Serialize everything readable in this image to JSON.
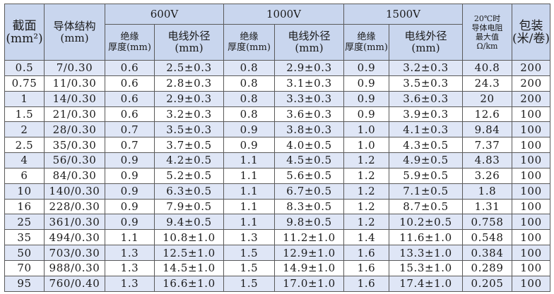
{
  "header": {
    "col_section": "截面\n(mm²)",
    "col_conductor": "导体结构\n(mm)",
    "groups": [
      "600V",
      "1000V",
      "1500V"
    ],
    "sub_thickness": "绝缘\n厚度(mm)",
    "sub_diameter": "电线外径\n(mm)",
    "col_resistance": "20℃时\n导体电阻\n最大值\nΩ/km",
    "col_package": "包装\n(米/卷)"
  },
  "rows": [
    {
      "section": "0.5",
      "conductor": "7/0.30",
      "t600": "0.6",
      "d600": "2.5±0.3",
      "t1000": "0.8",
      "d1000": "2.9±0.3",
      "t1500": "0.9",
      "d1500": "3.2±0.3",
      "resistance": "40.8",
      "package": "200"
    },
    {
      "section": "0.75",
      "conductor": "11/0.30",
      "t600": "0.6",
      "d600": "2.8±0.3",
      "t1000": "0.8",
      "d1000": "3.1±0.3",
      "t1500": "0.9",
      "d1500": "3.5±0.3",
      "resistance": "24.3",
      "package": "200"
    },
    {
      "section": "1",
      "conductor": "14/0.30",
      "t600": "0.6",
      "d600": "2.9±0.3",
      "t1000": "0.8",
      "d1000": "3.3±0.3",
      "t1500": "0.9",
      "d1500": "3.6±0.3",
      "resistance": "20",
      "package": "200"
    },
    {
      "section": "1.5",
      "conductor": "21/0.30",
      "t600": "0.6",
      "d600": "3.2±0.3",
      "t1000": "0.8",
      "d1000": "3.6±0.3",
      "t1500": "0.9",
      "d1500": "3.9±0.3",
      "resistance": "12.6",
      "package": "100"
    },
    {
      "section": "2",
      "conductor": "28/0.30",
      "t600": "0.7",
      "d600": "3.5±0.3",
      "t1000": "0.9",
      "d1000": "3.8±0.3",
      "t1500": "1.0",
      "d1500": "4.1±0.3",
      "resistance": "9.84",
      "package": "100"
    },
    {
      "section": "2.5",
      "conductor": "35/0.30",
      "t600": "0.7",
      "d600": "3.7±0.5",
      "t1000": "0.9",
      "d1000": "4.0±0.5",
      "t1500": "1.0",
      "d1500": "4.3±0.5",
      "resistance": "7.37",
      "package": "100"
    },
    {
      "section": "4",
      "conductor": "56/0.30",
      "t600": "0.9",
      "d600": "4.2±0.5",
      "t1000": "1.1",
      "d1000": "4.5±0.5",
      "t1500": "1.2",
      "d1500": "4.9±0.5",
      "resistance": "4.83",
      "package": "100"
    },
    {
      "section": "6",
      "conductor": "84/0.30",
      "t600": "0.9",
      "d600": "5.2±0.5",
      "t1000": "1.1",
      "d1000": "5.6±0.5",
      "t1500": "1.2",
      "d1500": "5.9±0.5",
      "resistance": "3.26",
      "package": "100"
    },
    {
      "section": "10",
      "conductor": "140/0.30",
      "t600": "0.9",
      "d600": "6.3±0.5",
      "t1000": "1.1",
      "d1000": "6.7±0.5",
      "t1500": "1.2",
      "d1500": "7.1±0.5",
      "resistance": "1.8",
      "package": "100"
    },
    {
      "section": "16",
      "conductor": "228/0.30",
      "t600": "0.9",
      "d600": "7.9±0.5",
      "t1000": "1.1",
      "d1000": "8.3±0.5",
      "t1500": "1.2",
      "d1500": "8.7±0.5",
      "resistance": "1.31",
      "package": "100"
    },
    {
      "section": "25",
      "conductor": "361/0.30",
      "t600": "0.9",
      "d600": "9.4±0.5",
      "t1000": "1.1",
      "d1000": "9.8±0.5",
      "t1500": "1.2",
      "d1500": "10.2±0.5",
      "resistance": "0.758",
      "package": "100"
    },
    {
      "section": "35",
      "conductor": "494/0.30",
      "t600": "1.1",
      "d600": "10.8±1.0",
      "t1000": "1.3",
      "d1000": "11.2±1.0",
      "t1500": "1.4",
      "d1500": "11.6±1.0",
      "resistance": "0.548",
      "package": "100"
    },
    {
      "section": "50",
      "conductor": "703/0.30",
      "t600": "1.3",
      "d600": "12.5±1.0",
      "t1000": "1.5",
      "d1000": "12.9±1.0",
      "t1500": "1.6",
      "d1500": "13.3±1.0",
      "resistance": "0.384",
      "package": "100"
    },
    {
      "section": "70",
      "conductor": "988/0.30",
      "t600": "1.3",
      "d600": "14.5±1.0",
      "t1000": "1.5",
      "d1000": "14.9±1.0",
      "t1500": "1.6",
      "d1500": "15.3±1.0",
      "resistance": "0.289",
      "package": "100"
    },
    {
      "section": "95",
      "conductor": "760/0.40",
      "t600": "1.3",
      "d600": "16.6±1.0",
      "t1000": "1.5",
      "d1000": "17.0±1.0",
      "t1500": "1.6",
      "d1500": "17.4±1.0",
      "resistance": "0.205",
      "package": "100"
    }
  ]
}
